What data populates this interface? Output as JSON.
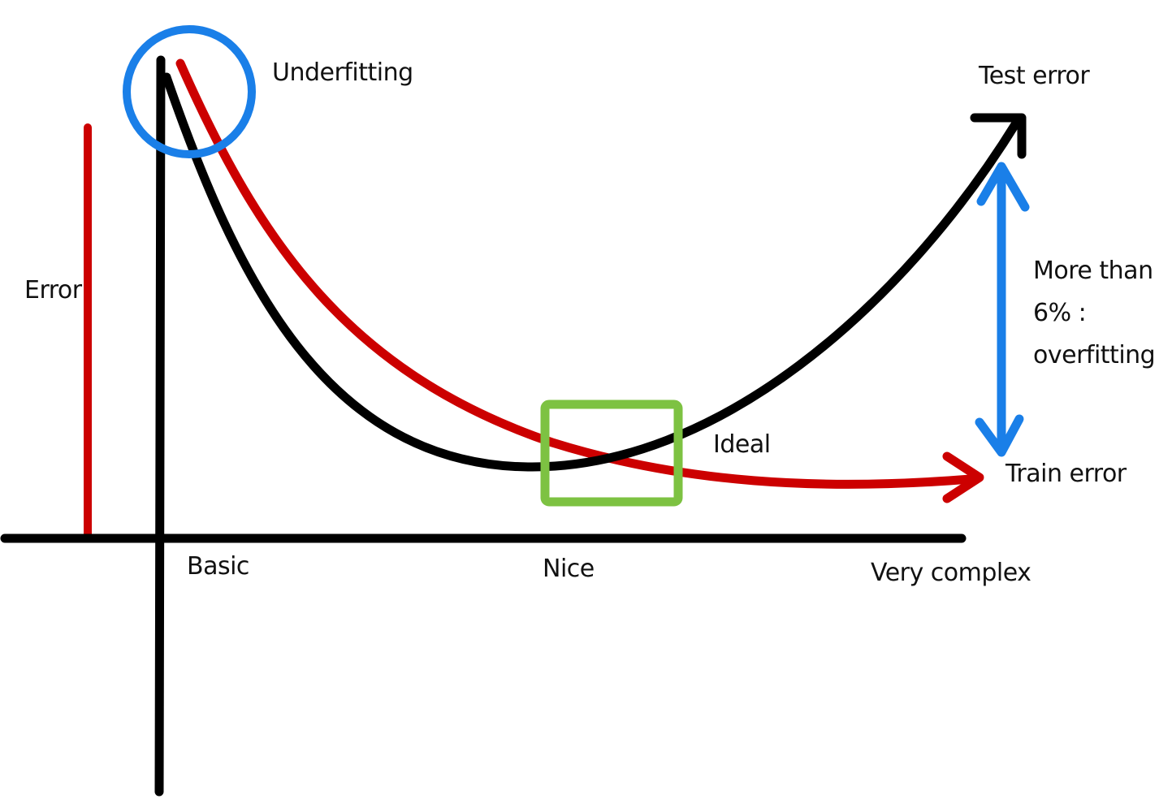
{
  "labels": {
    "underfitting": "Underfitting",
    "test_error": "Test error",
    "error_axis": "Error",
    "overfitting_line1": "More than",
    "overfitting_line2": "6% :",
    "overfitting_line3": "overfitting",
    "ideal": "Ideal",
    "train_error": "Train error",
    "x_basic": "Basic",
    "x_nice": "Nice",
    "x_very_complex": "Very complex"
  },
  "colors": {
    "axis": "#000000",
    "test_error_curve": "#000000",
    "train_error_curve": "#cc0000",
    "error_bar": "#cc0000",
    "underfitting_circle": "#1a7fe8",
    "overfitting_arrow": "#1a7fe8",
    "ideal_box": "#7dc242"
  }
}
